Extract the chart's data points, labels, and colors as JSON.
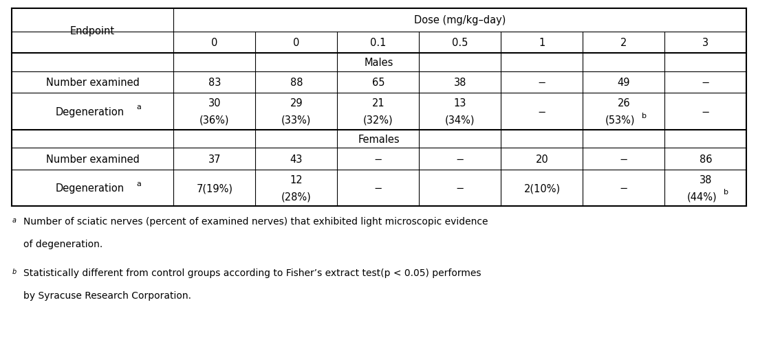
{
  "figsize": [
    11.02,
    5.02
  ],
  "dpi": 100,
  "background_color": "#ffffff",
  "dose_header": "Dose (mg/kg–day)",
  "endpoint_label": "Endpoint",
  "doses": [
    "0",
    "0",
    "0.1",
    "0.5",
    "1",
    "2",
    "3"
  ],
  "males_label": "Males",
  "females_label": "Females",
  "male_num_exam": [
    "83",
    "88",
    "65",
    "38",
    "−",
    "49",
    "−"
  ],
  "male_degen_top": [
    "30",
    "29",
    "21",
    "13",
    "−",
    "26",
    "−"
  ],
  "male_degen_bot": [
    "(36%)",
    "(33%)",
    "(32%)",
    "(34%)",
    "",
    "(53%)",
    ""
  ],
  "male_degen_superb": [
    false,
    false,
    false,
    false,
    false,
    true,
    false
  ],
  "male_degen_single": [
    false,
    false,
    false,
    false,
    true,
    false,
    true
  ],
  "fem_num_exam": [
    "37",
    "43",
    "−",
    "−",
    "20",
    "−",
    "86"
  ],
  "fem_degen_top": [
    "7(19%)",
    "12",
    "−",
    "−",
    "2(10%)",
    "−",
    "38"
  ],
  "fem_degen_bot": [
    "",
    "(28%)",
    "",
    "",
    "",
    "",
    "(44%)"
  ],
  "fem_degen_superb": [
    false,
    false,
    false,
    false,
    false,
    false,
    true
  ],
  "fem_degen_single": [
    true,
    false,
    true,
    true,
    true,
    true,
    false
  ],
  "footnote_a_sup": "a",
  "footnote_a_text": "Number of sciatic nerves (percent of examined nerves) that exhibited light microscopic evidence",
  "footnote_a_text2": "of degeneration.",
  "footnote_b_sup": "b",
  "footnote_b_text": "Statistically different from control groups according to Fisher’s extract test(p < 0.05) performes",
  "footnote_b_text2": "by Syracuse Research Corporation.",
  "col_proportions": [
    0.22,
    0.111,
    0.111,
    0.111,
    0.111,
    0.111,
    0.111,
    0.111
  ],
  "lw_outer": 1.5,
  "lw_inner": 0.8,
  "fs": 10.5
}
